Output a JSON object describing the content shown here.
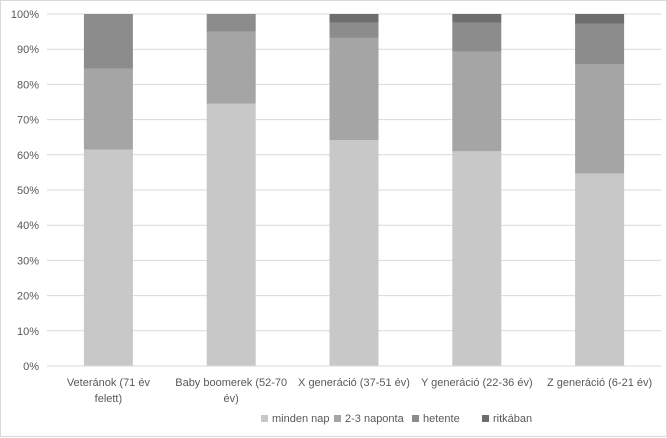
{
  "chart_data": {
    "type": "bar",
    "stacked": "percent",
    "title": "",
    "xlabel": "",
    "ylabel": "",
    "ylim": [
      0,
      100
    ],
    "yticks": [
      "0%",
      "10%",
      "20%",
      "30%",
      "40%",
      "50%",
      "60%",
      "70%",
      "80%",
      "90%",
      "100%"
    ],
    "grid": true,
    "legend_position": "bottom",
    "categories": [
      [
        "Veteránok (71 év",
        "felett)"
      ],
      [
        "Baby boomerek (52-70",
        "év)"
      ],
      [
        "X generáció (37-51 év)"
      ],
      [
        "Y generáció (22-36 év)"
      ],
      [
        "Z generáció (6-21 év)"
      ]
    ],
    "series": [
      {
        "name": "minden nap",
        "color": "#c8c8c8",
        "values": [
          61.5,
          74.5,
          64.2,
          61.0,
          54.7
        ]
      },
      {
        "name": "2-3 naponta",
        "color": "#a5a5a5",
        "values": [
          23.0,
          20.5,
          29.0,
          28.3,
          31.0
        ]
      },
      {
        "name": "hetente",
        "color": "#8c8c8c",
        "values": [
          15.5,
          5.0,
          4.3,
          8.2,
          11.5
        ]
      },
      {
        "name": "ritkában",
        "color": "#6e6e6e",
        "values": [
          0.0,
          0.0,
          2.5,
          2.5,
          2.8
        ]
      }
    ]
  }
}
